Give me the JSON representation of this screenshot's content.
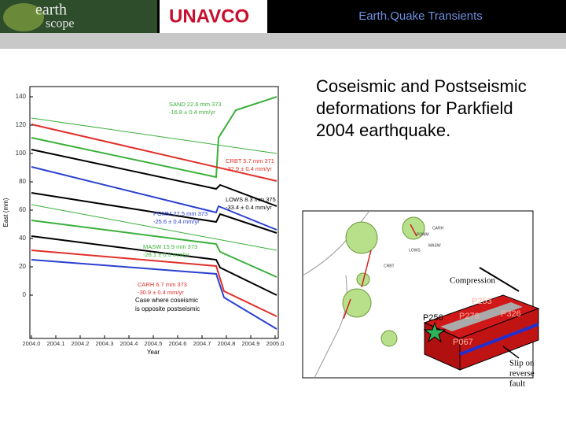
{
  "header": {
    "logo_earth": "earth",
    "logo_scope": "scope",
    "logo_unavco": "UNAVCO",
    "title": "Earth.Quake Transients"
  },
  "caption": "Coseismic and Postseismic deformations for Parkfield 2004 earthquake.",
  "timeseries": {
    "y_label": "East (mm)",
    "x_label": "Year",
    "y_ticks": [
      "140",
      "120",
      "100",
      "80",
      "60",
      "40",
      "20",
      "0"
    ],
    "x_ticks": [
      "2004.0",
      "2004.1",
      "2004.2",
      "2004.3",
      "2004.4",
      "2004.5",
      "2004.6",
      "2004.7",
      "2004.8",
      "2004.9",
      "2005.0"
    ],
    "stations": [
      {
        "line1": "SAND 22.6 mm 373",
        "line2": "-16.8 ± 0.4 mm/yr"
      },
      {
        "line1": "CRBT 5.7 mm 371",
        "line2": "-32.9 ± 0.4 mm/yr"
      },
      {
        "line1": "LOWS 8.3 mm 375",
        "line2": "-33.4 ± 0.4 mm/yr"
      },
      {
        "line1": "POMM 27.5 mm 373",
        "line2": "-25.6 ± 0.4 mm/yr"
      },
      {
        "line1": "MASW 15.9 mm 373",
        "line2": "-26.1 ± 0.3 mm/yr"
      },
      {
        "line1": "CARH 6.7 mm 373",
        "line2": "-30.9 ± 0.4 mm/yr"
      }
    ],
    "note": [
      "Case where coseismic",
      "is opposite postseismic"
    ]
  },
  "map": {
    "stations": [
      "CRBT",
      "LOWS",
      "POMM",
      "MASW",
      "CARH"
    ],
    "compression": "Compression",
    "gps": [
      "P253",
      "P278",
      "P256",
      "P326",
      "P067"
    ],
    "slip": [
      "Slip on",
      "reverse",
      "fault"
    ]
  }
}
